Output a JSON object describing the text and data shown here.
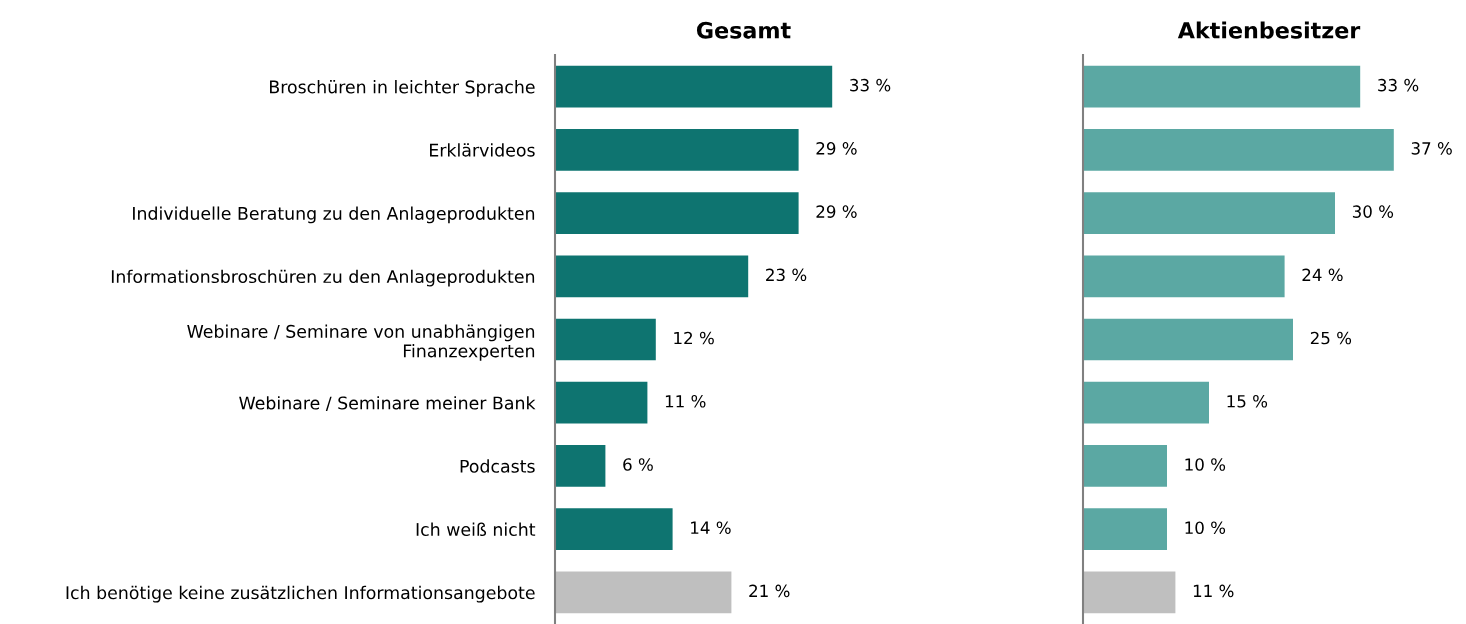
{
  "chart_data": [
    {
      "type": "bar",
      "orientation": "horizontal",
      "title": "Gesamt",
      "tick_labels": "y",
      "categories": [
        "Broschüren in leichter Sprache",
        "Erklärvideos",
        "Individuelle Beratung zu den Anlageprodukten",
        "Informationsbroschüren zu den Anlageprodukten",
        "Webinare / Seminare von unabhängigen\nFinanzexperten",
        "Webinare / Seminare meiner Bank",
        "Podcasts",
        "Ich weiß nicht",
        "Ich benötige keine zusätzlichen Informationsangebote"
      ],
      "values": [
        33,
        29,
        29,
        23,
        12,
        11,
        6,
        14,
        21
      ],
      "value_labels": [
        "33 %",
        "29 %",
        "29 %",
        "23 %",
        "12 %",
        "11 %",
        "6 %",
        "14 %",
        "21 %"
      ],
      "colors": [
        "#0e7470",
        "#0e7470",
        "#0e7470",
        "#0e7470",
        "#0e7470",
        "#0e7470",
        "#0e7470",
        "#0e7470",
        "#bfbfbf"
      ]
    },
    {
      "type": "bar",
      "orientation": "horizontal",
      "title": "Aktienbesitzer",
      "tick_labels": false,
      "categories": [
        null,
        null,
        null,
        null,
        null,
        null,
        null,
        null,
        null
      ],
      "values": [
        33,
        37,
        30,
        24,
        25,
        15,
        10,
        10,
        11
      ],
      "value_labels": [
        "33 %",
        "37 %",
        "30 %",
        "24 %",
        "25 %",
        "15 %",
        "10 %",
        "10 %",
        "11 %"
      ],
      "colors": [
        "#5ba8a3",
        "#5ba8a3",
        "#5ba8a3",
        "#5ba8a3",
        "#5ba8a3",
        "#5ba8a3",
        "#5ba8a3",
        "#5ba8a3",
        "#bfbfbf"
      ]
    }
  ]
}
